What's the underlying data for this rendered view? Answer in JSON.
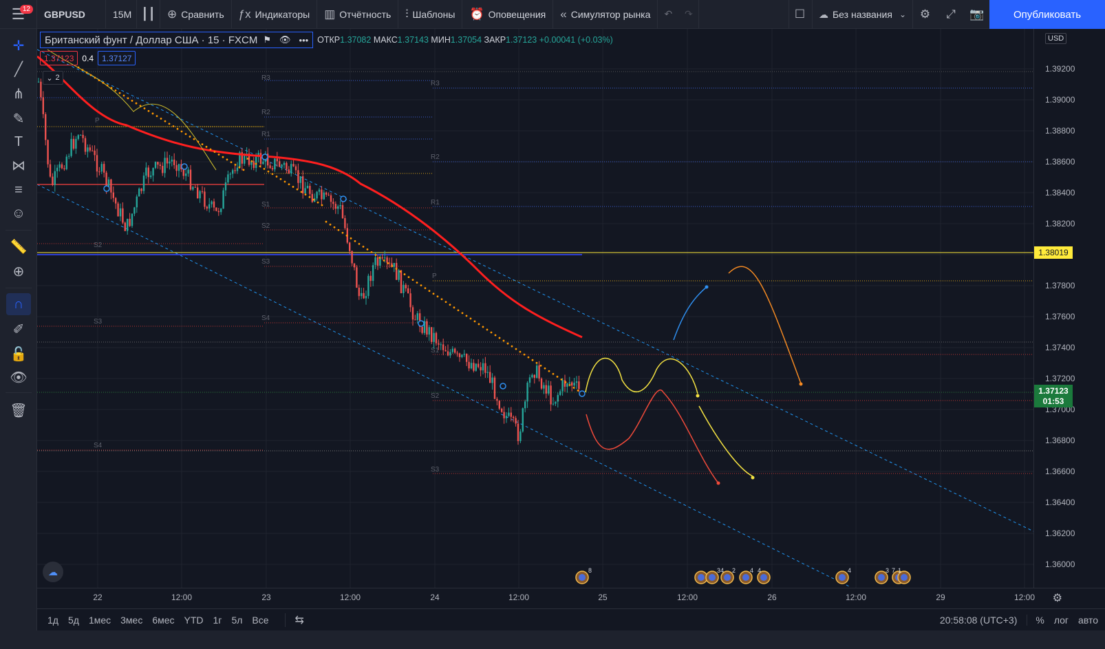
{
  "toolbar": {
    "badge": "12",
    "symbol": "GBPUSD",
    "interval": "15M",
    "compare": "Сравнить",
    "indicators": "Индикаторы",
    "report": "Отчётность",
    "templates": "Шаблоны",
    "alerts": "Оповещения",
    "replay": "Симулятор рынка",
    "layout_name": "Без названия",
    "publish": "Опубликовать"
  },
  "legend": {
    "title": "Британский фунт / Доллар США · 15 · FXCM",
    "ohlc_open_label": "ОТКР",
    "ohlc_open": "1.37082",
    "ohlc_high_label": "МАКС",
    "ohlc_high": "1.37143",
    "ohlc_low_label": "МИН",
    "ohlc_low": "1.37054",
    "ohlc_close_label": "ЗАКР",
    "ohlc_close": "1.37123",
    "change": "+0.00041 (+0.03%)",
    "sell": "1.37123",
    "spread": "0.4",
    "buy": "1.37127",
    "collapsed_count": "2"
  },
  "price_scale": {
    "currency": "USD",
    "labels": [
      "1.39200",
      "1.39000",
      "1.38800",
      "1.38600",
      "1.38400",
      "1.38200",
      "1.37800",
      "1.37600",
      "1.37400",
      "1.37200",
      "1.37000",
      "1.36800",
      "1.36600",
      "1.36400",
      "1.36200",
      "1.36000"
    ],
    "horizontal_line_price": "1.38019",
    "current_price": "1.37123",
    "countdown": "01:53"
  },
  "time_scale": {
    "labels": [
      "22",
      "12:00",
      "23",
      "12:00",
      "24",
      "12:00",
      "25",
      "12:00",
      "26",
      "12:00",
      "29",
      "12:00"
    ]
  },
  "bottom_bar": {
    "ranges": [
      "1д",
      "5д",
      "1мес",
      "3мес",
      "6мес",
      "YTD",
      "1г",
      "5л",
      "Все"
    ],
    "clock": "20:58:08 (UTC+3)",
    "percent": "%",
    "log": "лог",
    "auto": "авто"
  },
  "pivot_labels": [
    "R3",
    "R2",
    "R1",
    "P",
    "S1",
    "S2",
    "S3",
    "S4"
  ],
  "event_counts": [
    "8",
    "34",
    "2",
    "4",
    "4",
    "4",
    "3",
    "7",
    "1"
  ],
  "colors": {
    "background": "#131722",
    "up_candle": "#26a69a",
    "down_candle": "#ef5350",
    "ma_line": "#ff1f1f",
    "psar": "#ff9800",
    "channel": "#2196f3",
    "hline": "#ffeb3b",
    "accent": "#2962ff"
  }
}
